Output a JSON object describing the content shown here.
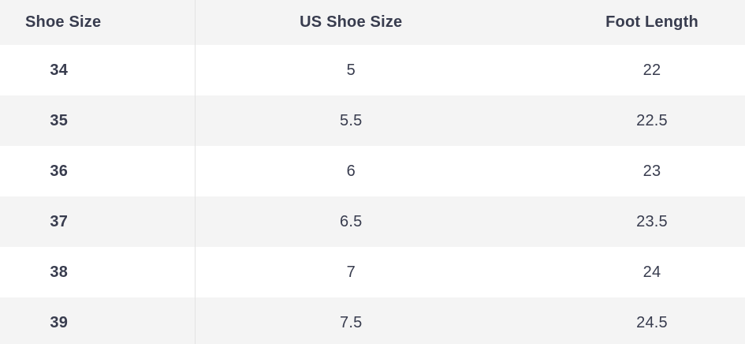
{
  "table": {
    "columns": [
      {
        "label": "Shoe Size"
      },
      {
        "label": "US Shoe Size"
      },
      {
        "label": "Foot Length"
      }
    ],
    "rows": [
      [
        "34",
        "5",
        "22"
      ],
      [
        "35",
        "5.5",
        "22.5"
      ],
      [
        "36",
        "6",
        "23"
      ],
      [
        "37",
        "6.5",
        "23.5"
      ],
      [
        "38",
        "7",
        "24"
      ],
      [
        "39",
        "7.5",
        "24.5"
      ]
    ]
  },
  "colors": {
    "text": "#383c4e",
    "header_bg": "#f4f4f4",
    "row_alt_bg": "#f4f4f4",
    "row_bg": "#ffffff",
    "divider": "#e3e3e3"
  }
}
